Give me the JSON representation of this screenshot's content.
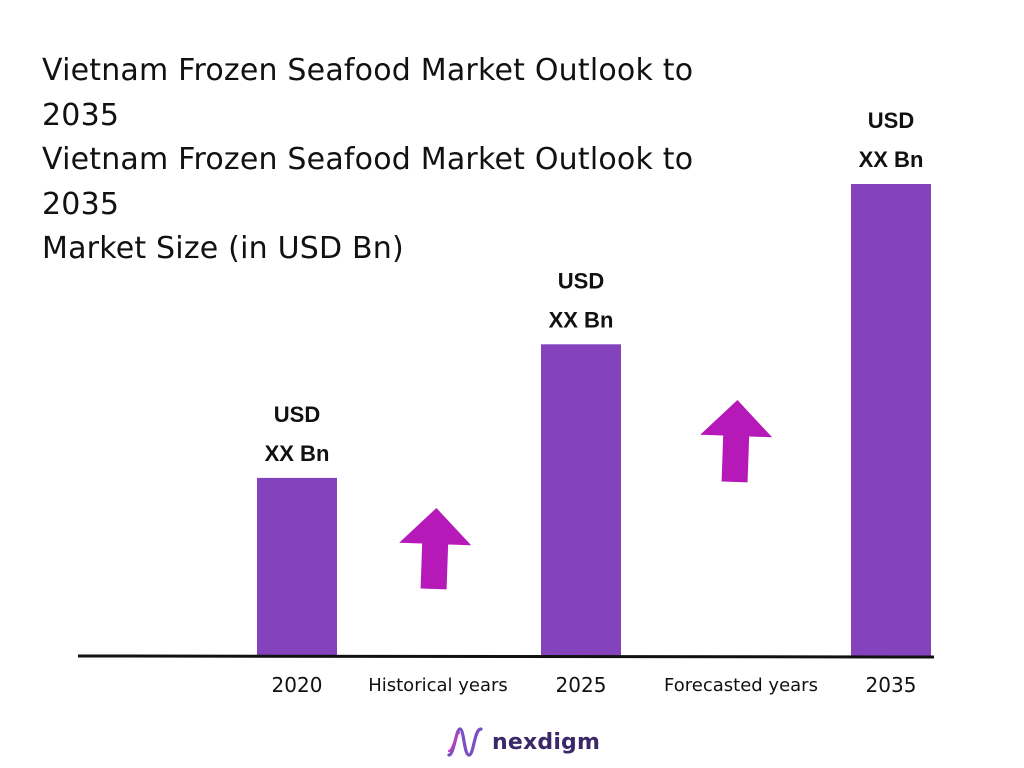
{
  "title": {
    "lines": [
      "Vietnam Frozen Seafood Market Outlook to",
      "2035",
      "Vietnam Frozen Seafood Market Outlook to",
      "2035",
      "Market Size (in USD Bn)"
    ]
  },
  "chart_data": {
    "type": "bar",
    "title": "Vietnam Frozen Seafood Market Outlook to 2035",
    "subtitle": "Market Size (in USD Bn)",
    "categories": [
      "2020",
      "2025",
      "2035"
    ],
    "values": [
      1.0,
      1.75,
      2.65
    ],
    "data_labels": [
      [
        "USD",
        "XX Bn"
      ],
      [
        "USD",
        "XX Bn"
      ],
      [
        "USD",
        "XX Bn"
      ]
    ],
    "period_labels": [
      "Historical years",
      "Forecasted years"
    ],
    "ylim": [
      0,
      2.8
    ],
    "grid": false,
    "legend": "none",
    "bar_color": "#8442bc",
    "arrow_color": "#b51ab9",
    "axis_color": "#111111"
  },
  "brand": {
    "name": "nexdigm",
    "logo_icon": "nexdigm-wave-logo-icon",
    "color": "#3b2868"
  }
}
